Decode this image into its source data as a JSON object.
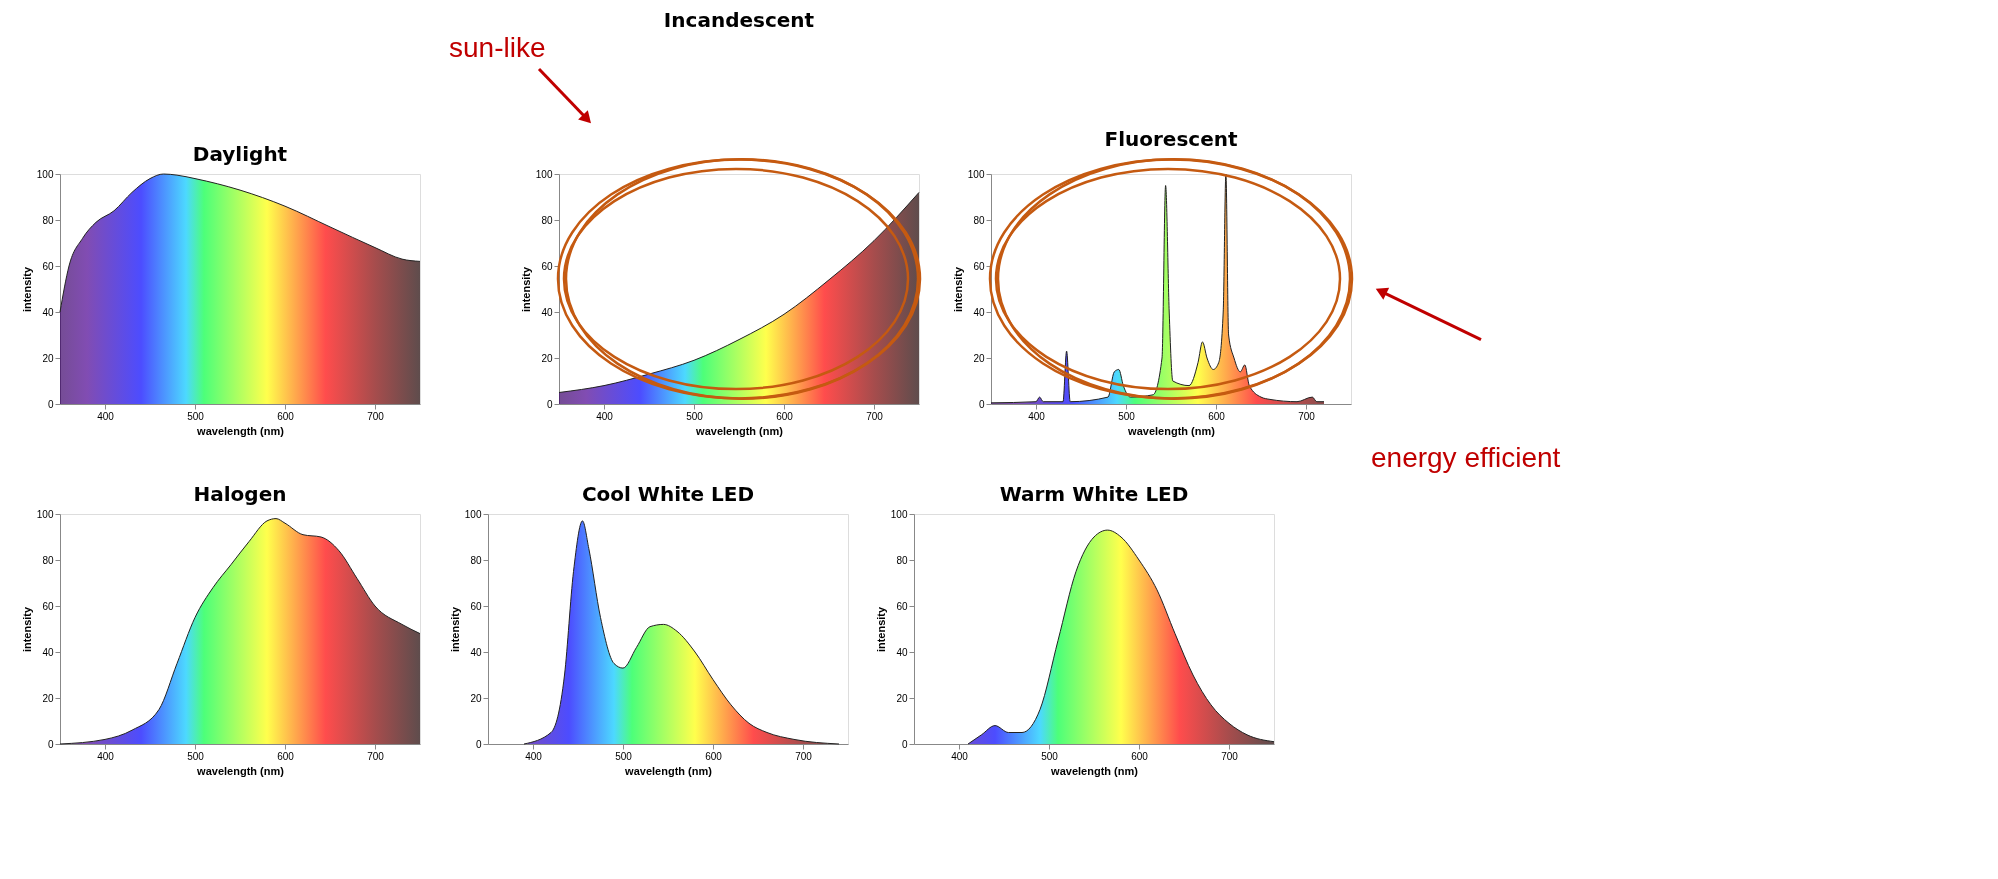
{
  "chart_data": [
    {
      "type": "area",
      "title": "Daylight",
      "xlabel": "wavelength (nm)",
      "ylabel": "intensity",
      "x": [
        350,
        360,
        375,
        390,
        410,
        430,
        450,
        465,
        480,
        500,
        550,
        600,
        650,
        700,
        730,
        750
      ],
      "values": [
        40,
        60,
        72,
        79,
        84,
        92,
        98,
        100,
        99.5,
        98,
        93,
        86,
        77,
        68,
        63,
        62
      ],
      "xlim": [
        350,
        750
      ],
      "ylim": [
        0,
        100
      ],
      "xticks": [
        400,
        500,
        600,
        700
      ],
      "yticks": [
        0,
        20,
        40,
        60,
        80,
        100
      ]
    },
    {
      "type": "area",
      "title": "Incandescent",
      "xlabel": "wavelength (nm)",
      "ylabel": "intensity",
      "x": [
        350,
        400,
        450,
        500,
        550,
        600,
        650,
        700,
        750
      ],
      "values": [
        5,
        8,
        13,
        19,
        28,
        39,
        54,
        71,
        92
      ],
      "xlim": [
        350,
        750
      ],
      "ylim": [
        0,
        100
      ],
      "xticks": [
        400,
        500,
        600,
        700
      ],
      "yticks": [
        0,
        20,
        40,
        60,
        80,
        100
      ],
      "annotations": [
        "sun-like"
      ]
    },
    {
      "type": "area",
      "title": "Fluorescent",
      "xlabel": "wavelength (nm)",
      "ylabel": "intensity",
      "x": [
        350,
        400,
        404,
        408,
        430,
        434,
        438,
        480,
        487,
        492,
        497,
        505,
        530,
        540,
        544,
        548,
        552,
        570,
        580,
        585,
        590,
        597,
        603,
        608,
        611,
        614,
        620,
        627,
        632,
        637,
        650,
        660,
        690,
        707,
        712,
        720
      ],
      "values": [
        0.5,
        1,
        3,
        1,
        1,
        23,
        1,
        3,
        14,
        15,
        8,
        3,
        4,
        20,
        95,
        40,
        10,
        8,
        18,
        27,
        20,
        15,
        18,
        40,
        100,
        30,
        20,
        14,
        17,
        8,
        3,
        2,
        1,
        3,
        1,
        1
      ],
      "xlim": [
        350,
        750
      ],
      "ylim": [
        0,
        100
      ],
      "xticks": [
        400,
        500,
        600,
        700
      ],
      "yticks": [
        0,
        20,
        40,
        60,
        80,
        100
      ],
      "annotations": [
        "energy efficient"
      ]
    },
    {
      "type": "area",
      "title": "Halogen",
      "xlabel": "wavelength (nm)",
      "ylabel": "intensity",
      "x": [
        350,
        400,
        430,
        460,
        480,
        500,
        520,
        540,
        560,
        580,
        590,
        600,
        620,
        640,
        660,
        680,
        700,
        730,
        750
      ],
      "values": [
        0,
        2,
        6,
        15,
        35,
        55,
        68,
        78,
        88,
        97,
        98,
        96,
        91,
        90,
        84,
        72,
        60,
        52,
        48
      ],
      "xlim": [
        350,
        750
      ],
      "ylim": [
        0,
        100
      ],
      "xticks": [
        400,
        500,
        600,
        700
      ],
      "yticks": [
        0,
        20,
        40,
        60,
        80,
        100
      ]
    },
    {
      "type": "area",
      "title": "Cool White LED",
      "xlabel": "wavelength (nm)",
      "ylabel": "intensity",
      "x": [
        390,
        420,
        435,
        445,
        455,
        462,
        475,
        490,
        500,
        515,
        530,
        545,
        560,
        580,
        600,
        620,
        640,
        660,
        690,
        740
      ],
      "values": [
        0,
        5,
        30,
        75,
        97,
        85,
        55,
        35,
        33,
        42,
        51,
        52,
        49,
        40,
        28,
        17,
        9,
        5,
        2,
        0
      ],
      "xlim": [
        350,
        750
      ],
      "ylim": [
        0,
        100
      ],
      "xticks": [
        400,
        500,
        600,
        700
      ],
      "yticks": [
        0,
        20,
        40,
        60,
        80,
        100
      ]
    },
    {
      "type": "area",
      "title": "Warm White LED",
      "xlabel": "wavelength (nm)",
      "ylabel": "intensity",
      "x": [
        410,
        425,
        440,
        455,
        470,
        490,
        510,
        530,
        550,
        565,
        580,
        600,
        620,
        640,
        660,
        680,
        700,
        720,
        750
      ],
      "values": [
        0,
        4,
        8,
        5,
        5,
        15,
        45,
        75,
        90,
        93,
        90,
        80,
        67,
        48,
        30,
        17,
        9,
        4,
        1
      ],
      "xlim": [
        350,
        750
      ],
      "ylim": [
        0,
        100
      ],
      "xticks": [
        400,
        500,
        600,
        700
      ],
      "yticks": [
        0,
        20,
        40,
        60,
        80,
        100
      ]
    }
  ]
}
